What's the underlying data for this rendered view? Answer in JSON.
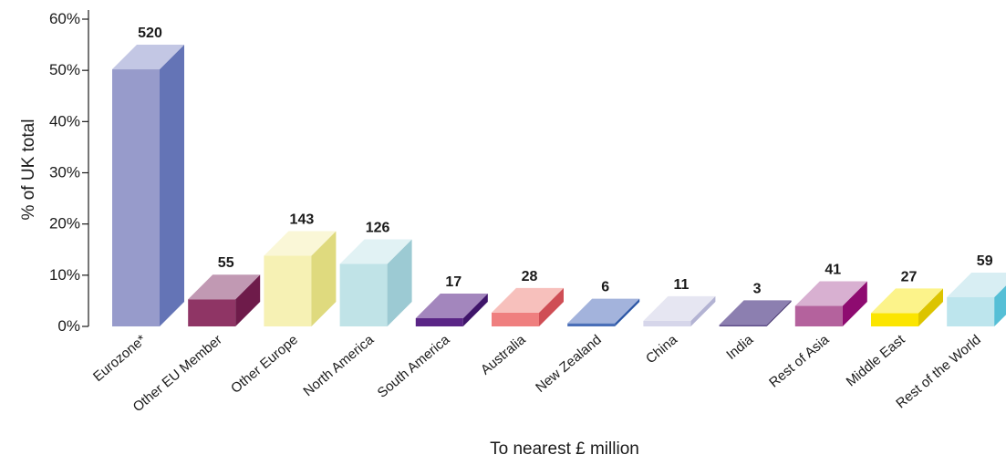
{
  "chart_data": {
    "type": "bar",
    "xlabel": "To nearest £ million",
    "ylabel": "% of UK total",
    "ylim": [
      0,
      60
    ],
    "yticks": [
      0,
      10,
      20,
      30,
      40,
      50,
      60
    ],
    "ytick_labels": [
      "0%",
      "10%",
      "20%",
      "30%",
      "40%",
      "50%",
      "60%"
    ],
    "grid": false,
    "categories": [
      "Eurozone*",
      "Other EU Member",
      "Other Europe",
      "North America",
      "South America",
      "Australia",
      "New Zealand",
      "China",
      "India",
      "Rest of Asia",
      "Middle East",
      "Rest of the World"
    ],
    "percent_values": [
      50.2,
      5.3,
      13.8,
      12.2,
      1.6,
      2.7,
      0.6,
      1.1,
      0.3,
      4.0,
      2.6,
      5.7
    ],
    "value_labels": [
      "520",
      "55",
      "143",
      "126",
      "17",
      "28",
      "6",
      "11",
      "3",
      "41",
      "27",
      "59"
    ],
    "colors": [
      {
        "front": "#979bcb",
        "side": "#6474b6",
        "top": "#c3c7e4"
      },
      {
        "front": "#8f3565",
        "side": "#6e1b4a",
        "top": "#c199b3"
      },
      {
        "front": "#f6f1b4",
        "side": "#dfda7e",
        "top": "#faf7d7"
      },
      {
        "front": "#c0e3e7",
        "side": "#9ccad3",
        "top": "#e1f2f4"
      },
      {
        "front": "#5a2586",
        "side": "#3f156a",
        "top": "#a386bd"
      },
      {
        "front": "#ef7f7f",
        "side": "#cf4e55",
        "top": "#f7c0bc"
      },
      {
        "front": "#4a6fb8",
        "side": "#2a55a5",
        "top": "#a3b3dc"
      },
      {
        "front": "#d6d6ea",
        "side": "#b3b3d3",
        "top": "#e6e6f2"
      },
      {
        "front": "#5b4a88",
        "side": "#3f2e6b",
        "top": "#8c7fb0"
      },
      {
        "front": "#b4629d",
        "side": "#8e0b70",
        "top": "#d8b0d1"
      },
      {
        "front": "#fbe500",
        "side": "#dcc400",
        "top": "#fcf38a"
      },
      {
        "front": "#bde5ed",
        "side": "#56bfd6",
        "top": "#d8eef3"
      }
    ]
  }
}
